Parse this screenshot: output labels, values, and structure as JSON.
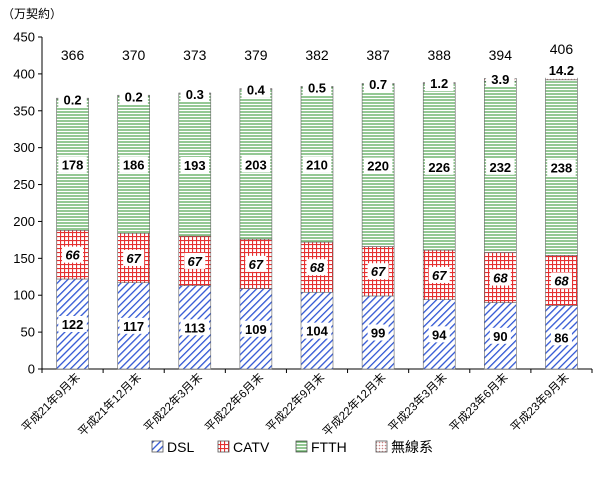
{
  "chart_data": {
    "type": "bar",
    "stacked": true,
    "unit_label": "（万契約）",
    "ylim": [
      0,
      450
    ],
    "yticks": [
      0,
      50,
      100,
      150,
      200,
      250,
      300,
      350,
      400,
      450
    ],
    "grid": false,
    "legend_position": "bottom",
    "categories": [
      "平成21年9月末",
      "平成21年12月末",
      "平成22年3月末",
      "平成22年6月末",
      "平成22年9月末",
      "平成22年12月末",
      "平成23年3月末",
      "平成23年6月末",
      "平成23年9月末"
    ],
    "totals": [
      366,
      370,
      373,
      379,
      382,
      387,
      388,
      394,
      406
    ],
    "series": [
      {
        "name": "DSL",
        "color": "#3b5fd9",
        "pattern": "diagonal-hatch",
        "values": [
          122,
          117,
          113,
          109,
          104,
          99,
          94,
          90,
          86
        ],
        "labels": [
          "122",
          "117",
          "113",
          "109",
          "104",
          "99",
          "94",
          "90",
          "86"
        ]
      },
      {
        "name": "CATV",
        "color": "#e03030",
        "pattern": "grid",
        "values": [
          66,
          67,
          67,
          67,
          68,
          67,
          67,
          68,
          68
        ],
        "labels": [
          "66",
          "67",
          "67",
          "67",
          "68",
          "67",
          "67",
          "68",
          "68"
        ]
      },
      {
        "name": "FTTH",
        "color": "#3c9a3c",
        "pattern": "horizontal-lines",
        "values": [
          178,
          186,
          193,
          203,
          210,
          220,
          226,
          232,
          238
        ],
        "labels": [
          "178",
          "186",
          "193",
          "203",
          "210",
          "220",
          "226",
          "232",
          "238"
        ]
      },
      {
        "name": "無線系",
        "color": "#d9a0a0",
        "pattern": "dots",
        "values": [
          0.2,
          0.2,
          0.3,
          0.4,
          0.5,
          0.7,
          1.2,
          3.9,
          14.2
        ],
        "labels": [
          "0.2",
          "0.2",
          "0.3",
          "0.4",
          "0.5",
          "0.7",
          "1.2",
          "3.9",
          "14.2"
        ]
      }
    ]
  }
}
